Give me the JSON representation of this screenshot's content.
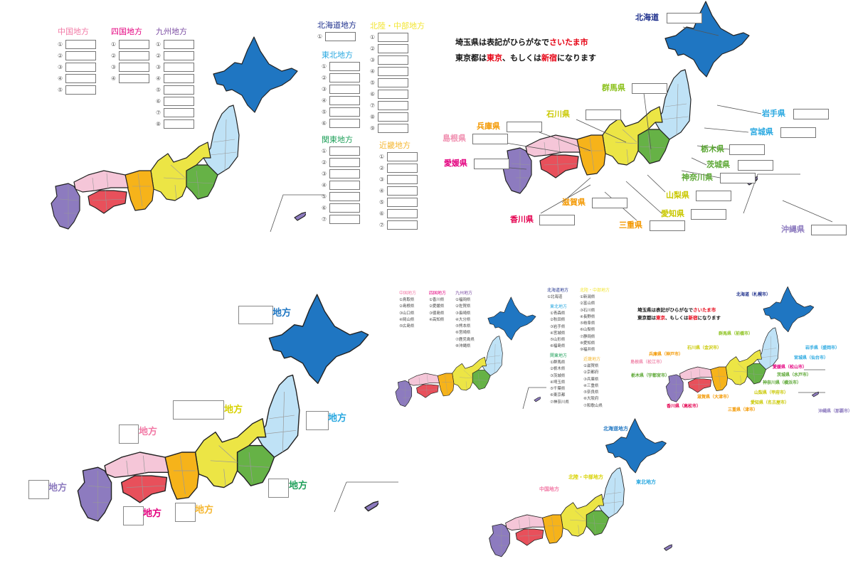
{
  "colors": {
    "hokkaido": "#1f76c2",
    "tohoku": "#bfe2f6",
    "kanto": "#66b246",
    "chubu": "#ece545",
    "kinki": "#f6b31a",
    "chugoku": "#f5c6d8",
    "shikoku": "#e8505b",
    "kyushu": "#8d7bbf",
    "outline": "#222222",
    "inner_border": "#999999"
  },
  "worksheet1": {
    "groups": [
      {
        "title": "中国地方",
        "color": "#f27aa6",
        "count": 5
      },
      {
        "title": "四国地方",
        "color": "#e4007f",
        "count": 4
      },
      {
        "title": "九州地方",
        "color": "#7c4ea3",
        "count": 8
      },
      {
        "title": "北海道地方",
        "color": "#1d2f8c",
        "count": 1
      },
      {
        "title": "東北地方",
        "color": "#29a8e0",
        "count": 6
      },
      {
        "title": "関東地方",
        "color": "#1fa05a",
        "count": 7
      },
      {
        "title": "北陸・中部地方",
        "color": "#f2e531",
        "count": 9
      },
      {
        "title": "近畿地方",
        "color": "#f5b731",
        "count": 7
      }
    ],
    "numbers": [
      "①",
      "②",
      "③",
      "④",
      "⑤",
      "⑥",
      "⑦",
      "⑧",
      "⑨"
    ]
  },
  "worksheet2": {
    "note_line1_a": "埼玉県は表記がひらがなで",
    "note_line1_b": "さいたま市",
    "note_line2_a": "東京都は",
    "note_line2_b": "東京",
    "note_line2_c": "、もしくは",
    "note_line2_d": "新宿",
    "note_line2_e": "になります",
    "labels": [
      {
        "text": "北海道",
        "color": "#1d2f8c"
      },
      {
        "text": "群馬県",
        "color": "#8dc21f"
      },
      {
        "text": "石川県",
        "color": "#c9c800"
      },
      {
        "text": "岩手県",
        "color": "#29a8e0"
      },
      {
        "text": "宮城県",
        "color": "#29a8e0"
      },
      {
        "text": "兵庫県",
        "color": "#f39800"
      },
      {
        "text": "島根県",
        "color": "#f08fb0"
      },
      {
        "text": "栃木県",
        "color": "#5aa632"
      },
      {
        "text": "愛媛県",
        "color": "#e4007f"
      },
      {
        "text": "茨城県",
        "color": "#5aa632"
      },
      {
        "text": "神奈川県",
        "color": "#5aa632"
      },
      {
        "text": "山梨県",
        "color": "#c9c800"
      },
      {
        "text": "滋賀県",
        "color": "#f39800"
      },
      {
        "text": "愛知県",
        "color": "#c9c800"
      },
      {
        "text": "香川県",
        "color": "#e4004f"
      },
      {
        "text": "三重県",
        "color": "#f39800"
      },
      {
        "text": "沖縄県",
        "color": "#8d7bbf"
      }
    ]
  },
  "worksheet3": {
    "labels": [
      {
        "text": "地方",
        "color": "#1f76c2"
      },
      {
        "text": "地方",
        "color": "#d8d200"
      },
      {
        "text": "地方",
        "color": "#f27aa6"
      },
      {
        "text": "地方",
        "color": "#29a8e0"
      },
      {
        "text": "地方",
        "color": "#8d7bbf"
      },
      {
        "text": "地方",
        "color": "#1fa05a"
      },
      {
        "text": "地方",
        "color": "#e4007f"
      },
      {
        "text": "地方",
        "color": "#f5b731"
      }
    ]
  },
  "answers1": {
    "groups": [
      {
        "title": "中国地方",
        "color": "#f27aa6",
        "items": [
          "①鳥取県",
          "②島根県",
          "③山口県",
          "④岡山県",
          "⑤広島県"
        ]
      },
      {
        "title": "四国地方",
        "color": "#e4007f",
        "items": [
          "①香川県",
          "②愛媛県",
          "③徳島県",
          "④高知県"
        ]
      },
      {
        "title": "九州地方",
        "color": "#7c4ea3",
        "items": [
          "①福岡県",
          "②佐賀県",
          "③長崎県",
          "④大分県",
          "⑤熊本県",
          "⑥宮崎県",
          "⑦鹿児島県",
          "⑧沖縄県"
        ]
      },
      {
        "title": "北海道地方",
        "color": "#1d2f8c",
        "items": [
          "①北海道"
        ]
      },
      {
        "title": "東北地方",
        "color": "#29a8e0",
        "items": [
          "①青森県",
          "②秋田県",
          "③岩手県",
          "④宮城県",
          "⑤山形県",
          "⑥福島県"
        ]
      },
      {
        "title": "関東地方",
        "color": "#1fa05a",
        "items": [
          "①群馬県",
          "②栃木県",
          "③茨城県",
          "④埼玉県",
          "⑤千葉県",
          "⑥東京都",
          "⑦神奈川県"
        ]
      },
      {
        "title": "北陸・中部地方",
        "color": "#f2e531",
        "items": [
          "①新潟県",
          "②富山県",
          "③石川県",
          "④長野県",
          "⑤岐阜県",
          "⑥山梨県",
          "⑦静岡県",
          "⑧愛知県",
          "⑨福井県"
        ]
      },
      {
        "title": "近畿地方",
        "color": "#f5b731",
        "items": [
          "①滋賀県",
          "②京都府",
          "③兵庫県",
          "④三重県",
          "⑤奈良県",
          "⑥大阪府",
          "⑦和歌山県"
        ]
      }
    ]
  },
  "answers2": {
    "labels": [
      {
        "text": "北海道（札幌市）",
        "color": "#1d2f8c"
      },
      {
        "text": "群馬県（前橋市）",
        "color": "#8dc21f"
      },
      {
        "text": "石川県（金沢市）",
        "color": "#c9c800"
      },
      {
        "text": "岩手県（盛岡市）",
        "color": "#29a8e0"
      },
      {
        "text": "宮城県（仙台市）",
        "color": "#29a8e0"
      },
      {
        "text": "兵庫県（神戸市）",
        "color": "#f39800"
      },
      {
        "text": "島根県（松江市）",
        "color": "#f08fb0"
      },
      {
        "text": "愛媛県（松山市）",
        "color": "#e4007f"
      },
      {
        "text": "栃木県（宇都宮市）",
        "color": "#5aa632"
      },
      {
        "text": "茨城県（水戸市）",
        "color": "#5aa632"
      },
      {
        "text": "神奈川県（横浜市）",
        "color": "#5aa632"
      },
      {
        "text": "山梨県（甲府市）",
        "color": "#c9c800"
      },
      {
        "text": "滋賀県（大津市）",
        "color": "#f39800"
      },
      {
        "text": "愛知県（名古屋市）",
        "color": "#c9c800"
      },
      {
        "text": "香川県（高松市）",
        "color": "#e4004f"
      },
      {
        "text": "三重県（津市）",
        "color": "#f39800"
      },
      {
        "text": "沖縄県（那覇市）",
        "color": "#8d7bbf"
      }
    ]
  },
  "answers3": {
    "labels": [
      {
        "text": "北海道地方",
        "color": "#1f76c2"
      },
      {
        "text": "東北地方",
        "color": "#29a8e0"
      },
      {
        "text": "北陸・中部地方",
        "color": "#d8d200"
      },
      {
        "text": "中国地方",
        "color": "#f27aa6"
      }
    ]
  }
}
